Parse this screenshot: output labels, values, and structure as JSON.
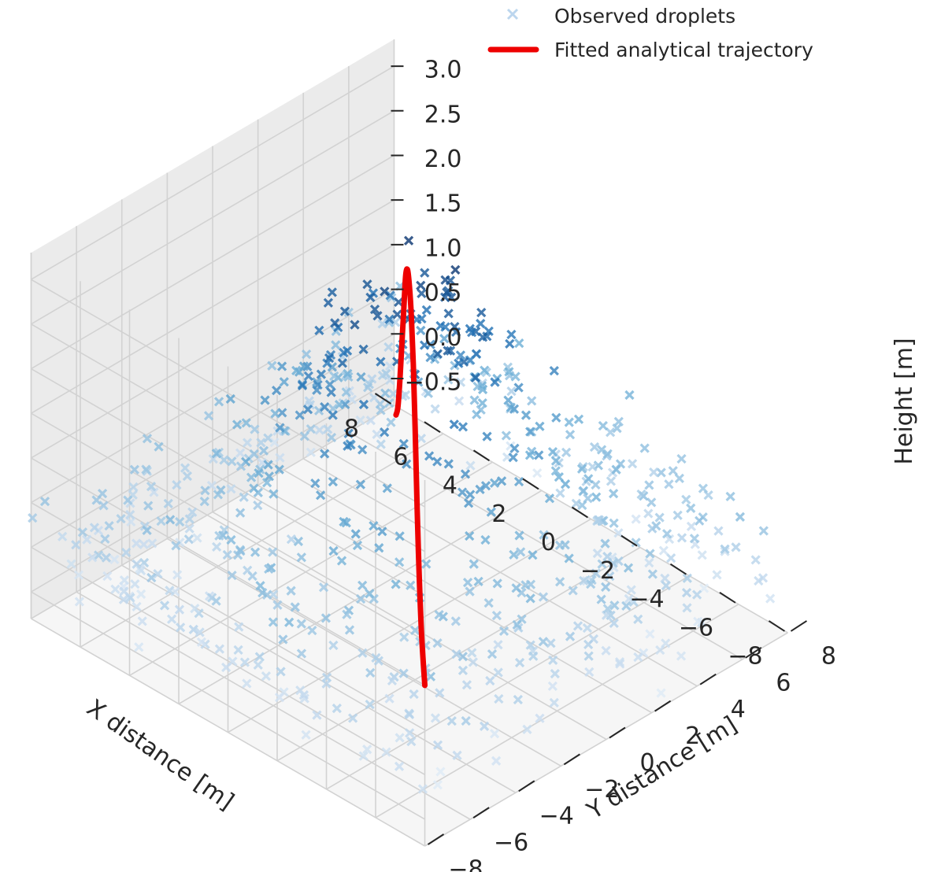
{
  "chart_data": {
    "type": "scatter",
    "projection": "3d",
    "title": "",
    "xlabel": "X distance [m]",
    "ylabel": "Y distance [m]",
    "zlabel": "Height [m]",
    "xlim": [
      -8,
      8
    ],
    "ylim": [
      -8,
      8
    ],
    "zlim": [
      -0.8,
      3.3
    ],
    "xticks": [
      8,
      6,
      4,
      2,
      0,
      -2,
      -4,
      -6,
      -8
    ],
    "yticks": [
      -8,
      -6,
      -4,
      -2,
      0,
      2,
      4,
      6,
      8
    ],
    "zticks": [
      3.0,
      2.5,
      2.0,
      1.5,
      1.0,
      0.5,
      0.0,
      -0.5
    ],
    "xtick_labels": [
      "8",
      "6",
      "4",
      "2",
      "0",
      "−2",
      "−4",
      "−6",
      "−8"
    ],
    "ytick_labels": [
      "−8",
      "−6",
      "−4",
      "−2",
      "0",
      "2",
      "4",
      "6",
      "8"
    ],
    "ztick_labels": [
      "3.0",
      "2.5",
      "2.0",
      "1.5",
      "1.0",
      "0.5",
      "0.0",
      "−0.5"
    ],
    "grid": true,
    "legend_position": "top-right",
    "series": [
      {
        "name": "Observed droplets",
        "kind": "scatter",
        "marker": "x",
        "colormap": "Blues",
        "color": "#3a78b5",
        "note_shape": "random droplet cloud following z = 3·exp(-(x²+y²)/(2·3²)) plus noise, x,y in [-8,8]",
        "count": 700
      },
      {
        "name": "Fitted analytical trajectory",
        "kind": "line",
        "color": "#ee0000",
        "points": [
          {
            "x": -8,
            "y": -8,
            "z": 1.0
          },
          {
            "x": -6.3,
            "y": -6.3,
            "z": 1.05
          },
          {
            "x": -5.0,
            "y": -5.0,
            "z": 1.35
          },
          {
            "x": -4.0,
            "y": -4.0,
            "z": 1.75
          },
          {
            "x": -3.0,
            "y": -3.0,
            "z": 2.3
          },
          {
            "x": -2.0,
            "y": -2.0,
            "z": 2.75
          },
          {
            "x": -1.0,
            "y": -1.0,
            "z": 2.97
          },
          {
            "x": 0.0,
            "y": 0.0,
            "z": 3.0
          },
          {
            "x": 1.0,
            "y": 1.0,
            "z": 2.88
          },
          {
            "x": 2.0,
            "y": 2.0,
            "z": 2.5
          },
          {
            "x": 3.0,
            "y": 3.0,
            "z": 1.8
          },
          {
            "x": 4.0,
            "y": 4.0,
            "z": 1.1
          },
          {
            "x": 5.0,
            "y": 5.0,
            "z": 0.4
          },
          {
            "x": 6.0,
            "y": 6.0,
            "z": -0.2
          },
          {
            "x": 7.0,
            "y": 7.0,
            "z": -0.6
          }
        ]
      }
    ]
  }
}
